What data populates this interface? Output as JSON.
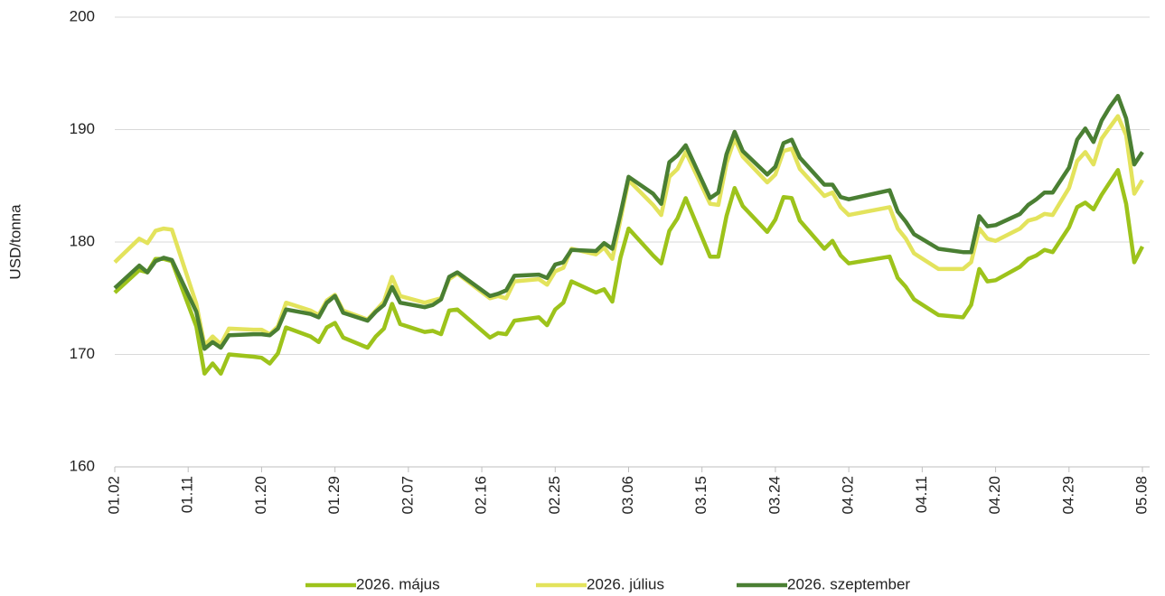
{
  "chart_data": {
    "type": "line",
    "y_label": "USD/tonna",
    "x": [
      "01.02",
      "01.05",
      "01.06",
      "01.07",
      "01.08",
      "01.09",
      "01.12",
      "01.13",
      "01.14",
      "01.15",
      "01.16",
      "01.19",
      "01.20",
      "01.21",
      "01.22",
      "01.23",
      "01.26",
      "01.27",
      "01.28",
      "01.29",
      "01.30",
      "02.02",
      "02.03",
      "02.04",
      "02.05",
      "02.06",
      "02.09",
      "02.10",
      "02.11",
      "02.12",
      "02.13",
      "02.17",
      "02.18",
      "02.19",
      "02.20",
      "02.23",
      "02.24",
      "02.25",
      "02.26",
      "02.27",
      "03.02",
      "03.03",
      "03.04",
      "03.05",
      "03.06",
      "03.09",
      "03.10",
      "03.11",
      "03.12",
      "03.13",
      "03.16",
      "03.17",
      "03.18",
      "03.19",
      "03.20",
      "03.23",
      "03.24",
      "03.25",
      "03.26",
      "03.27",
      "03.30",
      "03.31",
      "04.01",
      "04.02",
      "04.07",
      "04.08",
      "04.09",
      "04.10",
      "04.13",
      "04.16",
      "04.17",
      "04.18",
      "04.19",
      "04.20",
      "04.23",
      "04.24",
      "04.25",
      "04.26",
      "04.27",
      "04.29",
      "04.30",
      "05.01",
      "05.02",
      "05.03",
      "05.04",
      "05.05",
      "05.06",
      "05.07",
      "05.08"
    ],
    "series": [
      {
        "name": "2026. május",
        "color": "#9dc31b",
        "values": [
          175.5,
          177.5,
          177.3,
          178.5,
          178.5,
          178.3,
          172.5,
          168.3,
          169.2,
          168.3,
          170.0,
          169.8,
          169.7,
          169.2,
          170.1,
          172.4,
          171.6,
          171.1,
          172.4,
          172.8,
          171.5,
          170.6,
          171.6,
          172.3,
          174.5,
          172.7,
          172.0,
          172.1,
          171.8,
          173.9,
          174.0,
          171.5,
          171.9,
          171.8,
          173.0,
          173.3,
          172.6,
          174.0,
          174.6,
          176.5,
          175.5,
          175.8,
          174.7,
          178.6,
          181.2,
          178.8,
          178.1,
          181.0,
          182.1,
          183.9,
          178.7,
          178.7,
          182.3,
          184.8,
          183.2,
          180.9,
          182.0,
          184.0,
          183.9,
          181.9,
          179.4,
          180.1,
          178.8,
          178.1,
          178.7,
          176.8,
          176.0,
          174.9,
          173.5,
          173.3,
          174.4,
          177.6,
          176.5,
          176.6,
          177.8,
          178.5,
          178.8,
          179.3,
          179.1,
          181.3,
          183.1,
          183.5,
          182.9,
          184.2,
          185.3,
          186.4,
          183.4,
          178.2,
          179.6
        ]
      },
      {
        "name": "2026. július",
        "color": "#e3e35c",
        "values": [
          178.2,
          180.3,
          179.9,
          181.0,
          181.2,
          181.1,
          174.5,
          170.8,
          171.6,
          170.9,
          172.3,
          172.2,
          172.2,
          171.8,
          172.5,
          174.6,
          173.9,
          173.5,
          174.8,
          175.3,
          173.9,
          173.1,
          173.9,
          174.7,
          176.9,
          175.2,
          174.6,
          174.8,
          175.0,
          176.7,
          177.2,
          175.0,
          175.2,
          175.0,
          176.5,
          176.7,
          176.2,
          177.4,
          177.7,
          179.4,
          178.9,
          179.5,
          178.5,
          182.0,
          185.5,
          183.3,
          182.4,
          185.8,
          186.5,
          188.0,
          183.4,
          183.3,
          187.0,
          189.2,
          187.6,
          185.3,
          186.0,
          188.1,
          188.3,
          186.5,
          184.1,
          184.4,
          183.1,
          182.4,
          183.1,
          181.2,
          180.3,
          179.0,
          177.6,
          177.6,
          178.2,
          181.2,
          180.3,
          180.1,
          181.2,
          181.9,
          182.1,
          182.5,
          182.4,
          184.8,
          187.2,
          188.0,
          186.9,
          189.2,
          190.2,
          191.2,
          189.5,
          184.3,
          185.5
        ]
      },
      {
        "name": "2026. szeptember",
        "color": "#4a7f33",
        "values": [
          175.9,
          177.9,
          177.3,
          178.3,
          178.6,
          178.4,
          173.8,
          170.5,
          171.1,
          170.6,
          171.7,
          171.8,
          171.8,
          171.7,
          172.3,
          174.0,
          173.6,
          173.3,
          174.6,
          175.2,
          173.7,
          173.0,
          173.8,
          174.4,
          176.0,
          174.6,
          174.2,
          174.4,
          174.9,
          176.9,
          177.3,
          175.2,
          175.4,
          175.7,
          177.0,
          177.1,
          176.8,
          178.0,
          178.2,
          179.3,
          179.2,
          179.9,
          179.4,
          182.5,
          185.8,
          184.3,
          183.4,
          187.1,
          187.7,
          188.6,
          183.9,
          184.4,
          187.8,
          189.8,
          188.1,
          186.0,
          186.7,
          188.8,
          189.1,
          187.5,
          185.1,
          185.1,
          184.0,
          183.8,
          184.6,
          182.7,
          181.8,
          180.7,
          179.4,
          179.1,
          179.1,
          182.3,
          181.4,
          181.5,
          182.5,
          183.3,
          183.8,
          184.4,
          184.4,
          186.6,
          189.1,
          190.1,
          188.9,
          190.8,
          192.0,
          193.0,
          191.0,
          186.9,
          188.0
        ]
      }
    ],
    "xticks": [
      "01.02",
      "01.11",
      "01.20",
      "01.29",
      "02.07",
      "02.16",
      "02.25",
      "03.06",
      "03.15",
      "03.24",
      "04.02",
      "04.11",
      "04.20",
      "04.29",
      "05.08"
    ],
    "ylim": [
      160,
      200
    ],
    "yticks": [
      160,
      170,
      180,
      190,
      200
    ],
    "grid": true,
    "legend": "bottom"
  }
}
